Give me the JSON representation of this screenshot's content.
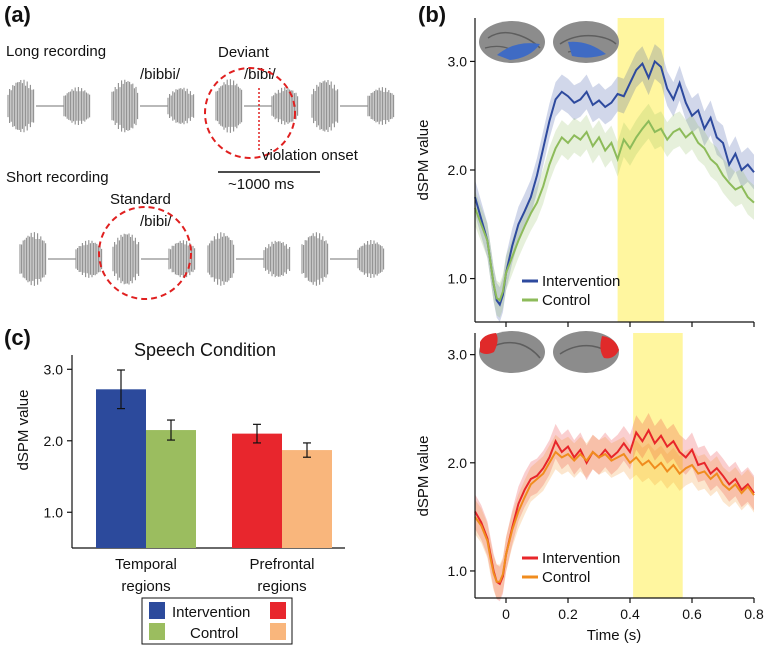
{
  "panel_a": {
    "letter": "(a)",
    "long_recording": "Long recording",
    "short_recording": "Short recording",
    "label_bibbi": "/bibbi/",
    "deviant": "Deviant",
    "label_bibi_deviant": "/bibi/",
    "violation_onset": "violation onset",
    "scale": "~1000 ms",
    "standard": "Standard",
    "label_bibi_standard": "/bibi/"
  },
  "panel_b": {
    "letter": "(b)"
  },
  "panel_c": {
    "letter": "(c)"
  },
  "colors": {
    "intervention_temporal": "#2e4a9e",
    "control_temporal": "#8dbb5a",
    "intervention_prefrontal": "#e8262a",
    "control_prefrontal": "#f08c1e",
    "bar_intervention_temporal": "#2c4a9c",
    "bar_control_temporal": "#9bbd5f",
    "bar_intervention_prefrontal": "#e8262d",
    "bar_control_prefrontal": "#f9b67c",
    "highlight": "#fff59a",
    "deviant_circle": "#e02020"
  },
  "chart_data": [
    {
      "id": "c",
      "type": "bar",
      "title": "Speech Condition",
      "ylabel": "dSPM value",
      "ylim": [
        0.5,
        3.2
      ],
      "yticks": [
        "1.0",
        "2.0",
        "3.0"
      ],
      "categories": [
        "Temporal regions",
        "Prefrontal regions"
      ],
      "category_lines": [
        [
          "Temporal",
          "regions"
        ],
        [
          "Prefrontal",
          "regions"
        ]
      ],
      "bars": [
        {
          "group": 0,
          "series": "Intervention",
          "value": 2.72,
          "err": 0.27,
          "color": "#2c4a9c"
        },
        {
          "group": 0,
          "series": "Control",
          "value": 2.15,
          "err": 0.14,
          "color": "#9bbd5f"
        },
        {
          "group": 1,
          "series": "Intervention",
          "value": 2.1,
          "err": 0.13,
          "color": "#e8262d"
        },
        {
          "group": 1,
          "series": "Control",
          "value": 1.87,
          "err": 0.1,
          "color": "#f9b67c"
        }
      ],
      "legend": {
        "intervention": "Intervention",
        "control": "Control",
        "placement": "bottom"
      }
    },
    {
      "id": "b-top",
      "type": "line",
      "xlim": [
        -0.1,
        0.8
      ],
      "ylim": [
        0.6,
        3.4
      ],
      "yticks": [
        "1.0",
        "2.0",
        "3.0"
      ],
      "ylabel": "dSPM value",
      "highlight": [
        0.36,
        0.51
      ],
      "legend_placement": "bottom-left",
      "series": [
        {
          "name": "Intervention",
          "color": "#2e4a9e",
          "points": [
            [
              -0.1,
              1.75
            ],
            [
              -0.08,
              1.55
            ],
            [
              -0.06,
              1.35
            ],
            [
              -0.05,
              1.15
            ],
            [
              -0.04,
              0.95
            ],
            [
              -0.03,
              0.8
            ],
            [
              -0.02,
              0.76
            ],
            [
              -0.01,
              0.85
            ],
            [
              0.0,
              1.05
            ],
            [
              0.02,
              1.3
            ],
            [
              0.04,
              1.5
            ],
            [
              0.06,
              1.62
            ],
            [
              0.08,
              1.75
            ],
            [
              0.1,
              1.95
            ],
            [
              0.12,
              2.2
            ],
            [
              0.14,
              2.45
            ],
            [
              0.16,
              2.65
            ],
            [
              0.18,
              2.72
            ],
            [
              0.2,
              2.68
            ],
            [
              0.22,
              2.62
            ],
            [
              0.24,
              2.65
            ],
            [
              0.26,
              2.72
            ],
            [
              0.28,
              2.6
            ],
            [
              0.3,
              2.64
            ],
            [
              0.32,
              2.58
            ],
            [
              0.34,
              2.62
            ],
            [
              0.36,
              2.7
            ],
            [
              0.38,
              2.68
            ],
            [
              0.4,
              2.8
            ],
            [
              0.42,
              2.92
            ],
            [
              0.44,
              2.98
            ],
            [
              0.46,
              2.85
            ],
            [
              0.48,
              3.0
            ],
            [
              0.5,
              2.95
            ],
            [
              0.52,
              2.75
            ],
            [
              0.54,
              2.65
            ],
            [
              0.56,
              2.8
            ],
            [
              0.58,
              2.62
            ],
            [
              0.6,
              2.5
            ],
            [
              0.62,
              2.55
            ],
            [
              0.64,
              2.38
            ],
            [
              0.66,
              2.48
            ],
            [
              0.68,
              2.3
            ],
            [
              0.7,
              2.25
            ],
            [
              0.72,
              2.05
            ],
            [
              0.74,
              2.15
            ],
            [
              0.76,
              2.0
            ],
            [
              0.78,
              2.05
            ],
            [
              0.8,
              1.98
            ]
          ]
        },
        {
          "name": "Control",
          "color": "#8dbb5a",
          "points": [
            [
              -0.1,
              1.65
            ],
            [
              -0.08,
              1.5
            ],
            [
              -0.06,
              1.35
            ],
            [
              -0.05,
              1.15
            ],
            [
              -0.04,
              0.95
            ],
            [
              -0.03,
              0.82
            ],
            [
              -0.02,
              0.8
            ],
            [
              -0.01,
              0.88
            ],
            [
              0.0,
              1.05
            ],
            [
              0.02,
              1.2
            ],
            [
              0.04,
              1.35
            ],
            [
              0.06,
              1.48
            ],
            [
              0.08,
              1.6
            ],
            [
              0.1,
              1.7
            ],
            [
              0.12,
              1.85
            ],
            [
              0.14,
              2.05
            ],
            [
              0.16,
              2.2
            ],
            [
              0.18,
              2.3
            ],
            [
              0.2,
              2.25
            ],
            [
              0.22,
              2.32
            ],
            [
              0.24,
              2.28
            ],
            [
              0.26,
              2.35
            ],
            [
              0.28,
              2.22
            ],
            [
              0.3,
              2.3
            ],
            [
              0.32,
              2.18
            ],
            [
              0.34,
              2.25
            ],
            [
              0.36,
              2.1
            ],
            [
              0.38,
              2.28
            ],
            [
              0.4,
              2.2
            ],
            [
              0.42,
              2.3
            ],
            [
              0.44,
              2.38
            ],
            [
              0.46,
              2.45
            ],
            [
              0.48,
              2.35
            ],
            [
              0.5,
              2.38
            ],
            [
              0.52,
              2.28
            ],
            [
              0.54,
              2.35
            ],
            [
              0.56,
              2.38
            ],
            [
              0.58,
              2.3
            ],
            [
              0.6,
              2.35
            ],
            [
              0.62,
              2.25
            ],
            [
              0.64,
              2.2
            ],
            [
              0.66,
              2.1
            ],
            [
              0.68,
              2.05
            ],
            [
              0.7,
              1.95
            ],
            [
              0.72,
              1.88
            ],
            [
              0.74,
              1.82
            ],
            [
              0.76,
              1.85
            ],
            [
              0.78,
              1.75
            ],
            [
              0.8,
              1.7
            ]
          ]
        }
      ],
      "legend": [
        "Intervention",
        "Control"
      ]
    },
    {
      "id": "b-bottom",
      "type": "line",
      "xlim": [
        -0.1,
        0.8
      ],
      "ylim": [
        0.75,
        3.2
      ],
      "yticks": [
        "1.0",
        "2.0",
        "3.0"
      ],
      "xticks": [
        "0",
        "0.2",
        "0.4",
        "0.6",
        "0.8"
      ],
      "xlabel": "Time (s)",
      "ylabel": "dSPM value",
      "highlight": [
        0.41,
        0.57
      ],
      "legend_placement": "bottom-left",
      "series": [
        {
          "name": "Intervention",
          "color": "#e8262a",
          "points": [
            [
              -0.1,
              1.55
            ],
            [
              -0.08,
              1.45
            ],
            [
              -0.06,
              1.3
            ],
            [
              -0.05,
              1.15
            ],
            [
              -0.04,
              1.0
            ],
            [
              -0.03,
              0.9
            ],
            [
              -0.02,
              0.88
            ],
            [
              -0.01,
              0.95
            ],
            [
              0.0,
              1.15
            ],
            [
              0.02,
              1.4
            ],
            [
              0.04,
              1.62
            ],
            [
              0.06,
              1.75
            ],
            [
              0.08,
              1.85
            ],
            [
              0.1,
              1.88
            ],
            [
              0.12,
              1.95
            ],
            [
              0.14,
              2.05
            ],
            [
              0.16,
              2.2
            ],
            [
              0.18,
              2.1
            ],
            [
              0.2,
              2.15
            ],
            [
              0.22,
              2.05
            ],
            [
              0.24,
              2.12
            ],
            [
              0.26,
              2.0
            ],
            [
              0.28,
              2.1
            ],
            [
              0.3,
              2.05
            ],
            [
              0.32,
              2.12
            ],
            [
              0.34,
              2.05
            ],
            [
              0.36,
              2.1
            ],
            [
              0.38,
              2.18
            ],
            [
              0.4,
              2.1
            ],
            [
              0.42,
              2.28
            ],
            [
              0.44,
              2.2
            ],
            [
              0.46,
              2.3
            ],
            [
              0.48,
              2.18
            ],
            [
              0.5,
              2.25
            ],
            [
              0.52,
              2.15
            ],
            [
              0.54,
              2.2
            ],
            [
              0.56,
              2.1
            ],
            [
              0.58,
              2.05
            ],
            [
              0.6,
              2.12
            ],
            [
              0.62,
              1.98
            ],
            [
              0.64,
              2.0
            ],
            [
              0.66,
              1.9
            ],
            [
              0.68,
              1.95
            ],
            [
              0.7,
              1.88
            ],
            [
              0.72,
              1.8
            ],
            [
              0.74,
              1.85
            ],
            [
              0.76,
              1.75
            ],
            [
              0.78,
              1.8
            ],
            [
              0.8,
              1.72
            ]
          ]
        },
        {
          "name": "Control",
          "color": "#f08c1e",
          "points": [
            [
              -0.1,
              1.5
            ],
            [
              -0.08,
              1.42
            ],
            [
              -0.06,
              1.28
            ],
            [
              -0.05,
              1.12
            ],
            [
              -0.04,
              0.98
            ],
            [
              -0.03,
              0.9
            ],
            [
              -0.02,
              0.9
            ],
            [
              -0.01,
              0.97
            ],
            [
              0.0,
              1.15
            ],
            [
              0.02,
              1.38
            ],
            [
              0.04,
              1.55
            ],
            [
              0.06,
              1.68
            ],
            [
              0.08,
              1.8
            ],
            [
              0.1,
              1.85
            ],
            [
              0.12,
              1.9
            ],
            [
              0.14,
              2.0
            ],
            [
              0.16,
              2.1
            ],
            [
              0.18,
              2.05
            ],
            [
              0.2,
              2.08
            ],
            [
              0.22,
              2.02
            ],
            [
              0.24,
              2.08
            ],
            [
              0.26,
              2.02
            ],
            [
              0.28,
              2.1
            ],
            [
              0.3,
              2.05
            ],
            [
              0.32,
              2.08
            ],
            [
              0.34,
              2.02
            ],
            [
              0.36,
              2.05
            ],
            [
              0.38,
              2.08
            ],
            [
              0.4,
              2.0
            ],
            [
              0.42,
              2.05
            ],
            [
              0.44,
              1.98
            ],
            [
              0.46,
              2.02
            ],
            [
              0.48,
              1.95
            ],
            [
              0.5,
              2.0
            ],
            [
              0.52,
              1.92
            ],
            [
              0.54,
              1.98
            ],
            [
              0.56,
              1.9
            ],
            [
              0.58,
              1.95
            ],
            [
              0.6,
              1.98
            ],
            [
              0.62,
              1.9
            ],
            [
              0.64,
              1.92
            ],
            [
              0.66,
              1.85
            ],
            [
              0.68,
              1.9
            ],
            [
              0.7,
              1.8
            ],
            [
              0.72,
              1.75
            ],
            [
              0.74,
              1.8
            ],
            [
              0.76,
              1.72
            ],
            [
              0.78,
              1.78
            ],
            [
              0.8,
              1.7
            ]
          ]
        }
      ],
      "legend": [
        "Intervention",
        "Control"
      ]
    }
  ]
}
